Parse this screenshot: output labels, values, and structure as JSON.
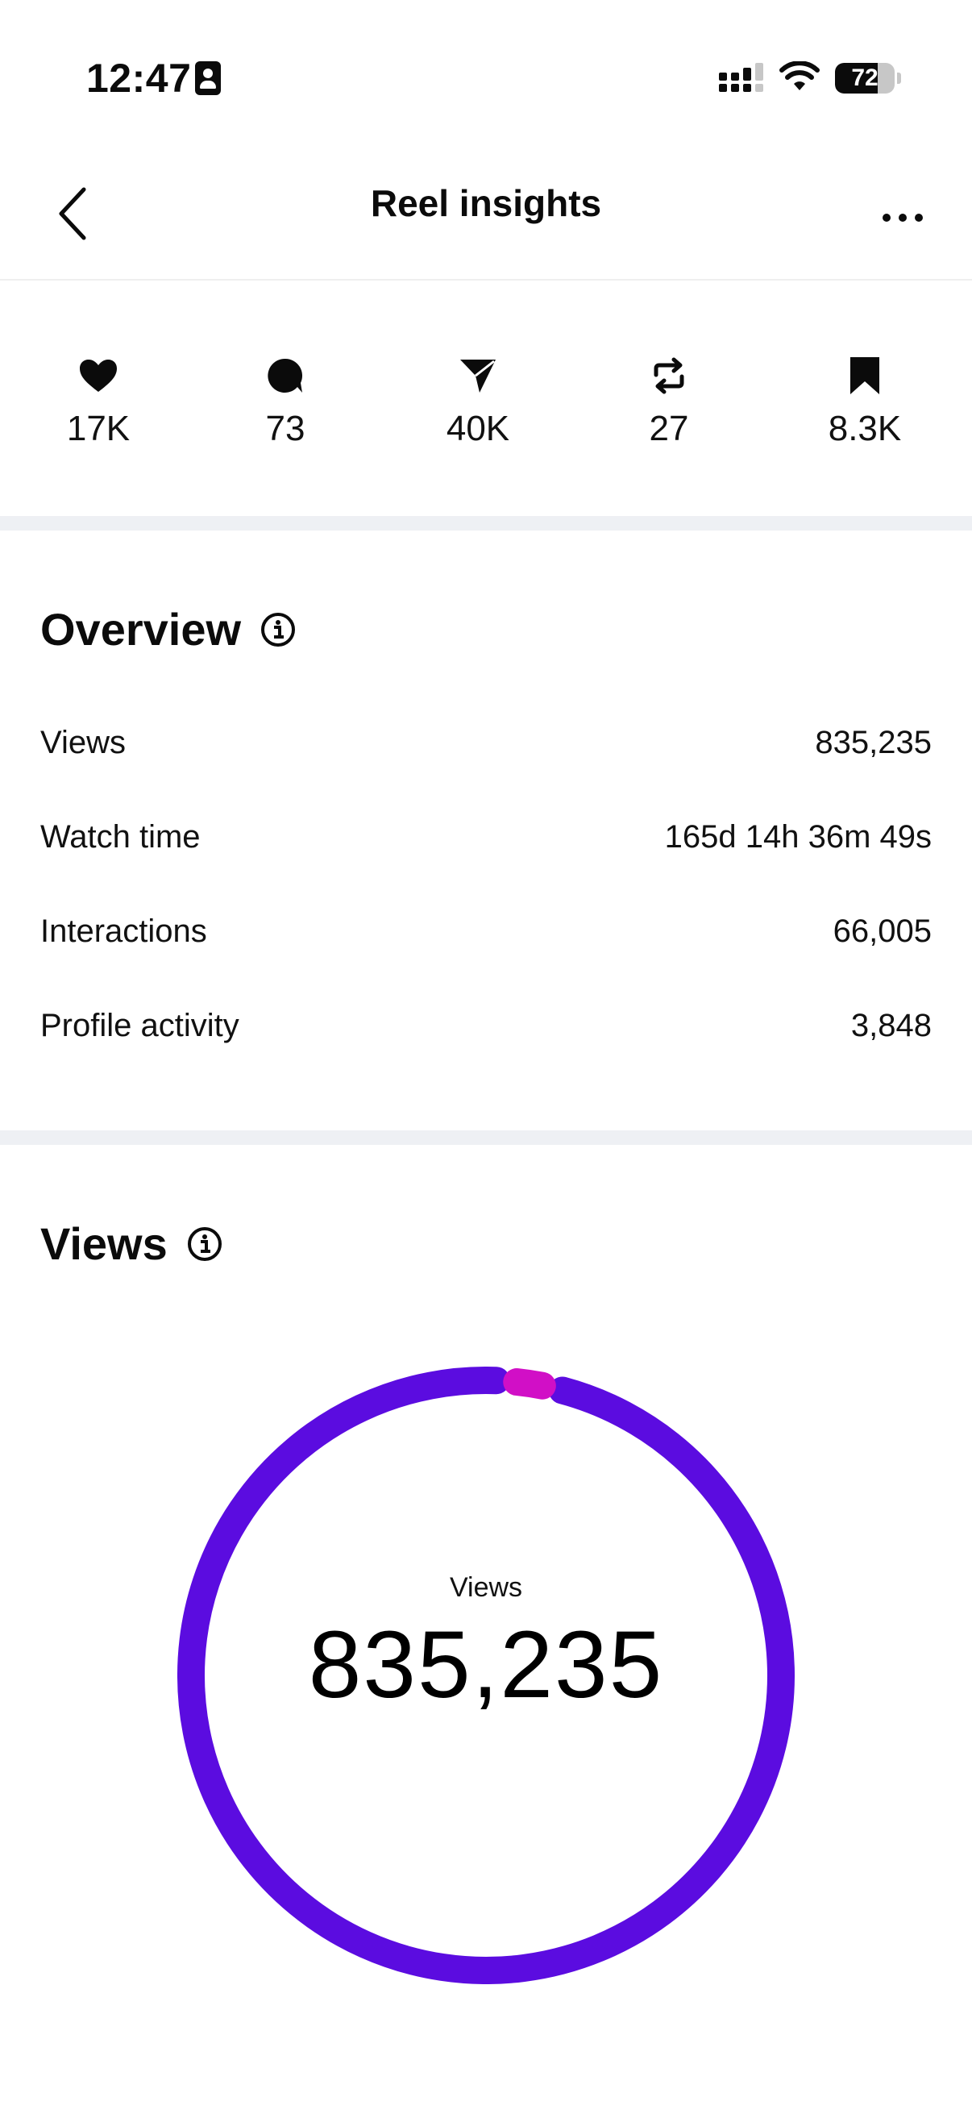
{
  "status_bar": {
    "time": "12:47",
    "battery_level": "72",
    "battery_fraction": 0.72,
    "icons": [
      "id-card-icon",
      "signal-icon",
      "wifi-icon",
      "battery-icon"
    ]
  },
  "header": {
    "title": "Reel insights",
    "back_icon": "chevron-left-icon",
    "more_icon": "ellipsis-icon"
  },
  "stats": [
    {
      "icon": "heart-icon",
      "value": "17K"
    },
    {
      "icon": "comment-icon",
      "value": "73"
    },
    {
      "icon": "send-icon",
      "value": "40K"
    },
    {
      "icon": "repost-icon",
      "value": "27"
    },
    {
      "icon": "bookmark-icon",
      "value": "8.3K"
    }
  ],
  "overview": {
    "title": "Overview",
    "rows": [
      {
        "label": "Views",
        "value": "835,235"
      },
      {
        "label": "Watch time",
        "value": "165d 14h 36m 49s"
      },
      {
        "label": "Interactions",
        "value": "66,005"
      },
      {
        "label": "Profile activity",
        "value": "3,848"
      }
    ]
  },
  "views": {
    "title": "Views",
    "ring_label": "Views",
    "ring_value": "835,235",
    "segments": [
      {
        "fraction": 0.975,
        "color": "#5b0ce0"
      },
      {
        "fraction": 0.025,
        "color": "#d10fc6"
      }
    ]
  },
  "colors": {
    "accent_primary": "#5b0ce0",
    "accent_secondary": "#d10fc6",
    "divider": "#eef0f4",
    "text": "#0b0b0b"
  }
}
